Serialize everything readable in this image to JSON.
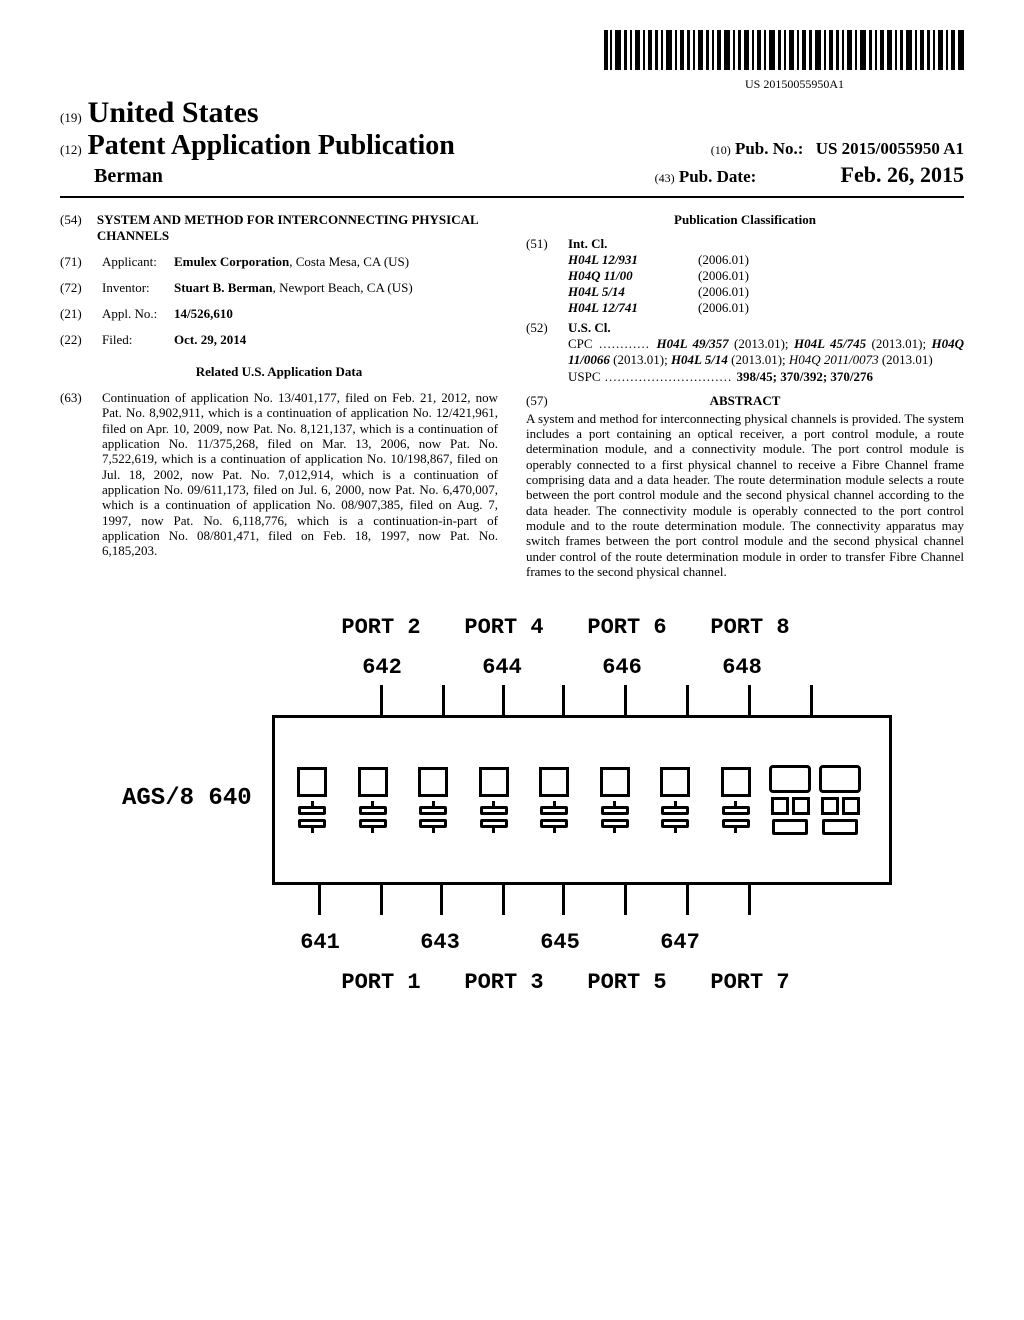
{
  "barcode_number": "US 20150055950A1",
  "header": {
    "n19_label": "(19)",
    "country": "United States",
    "n12_label": "(12)",
    "pub_type": "Patent Application Publication",
    "author": "Berman",
    "n10_label": "(10)",
    "pubno_label": "Pub. No.:",
    "pubno_value": "US 2015/0055950 A1",
    "n43_label": "(43)",
    "pubdate_label": "Pub. Date:",
    "pubdate_value": "Feb. 26, 2015"
  },
  "left": {
    "n54": "(54)",
    "title": "SYSTEM AND METHOD FOR INTERCONNECTING PHYSICAL CHANNELS",
    "n71": "(71)",
    "applicant_label": "Applicant:",
    "applicant_value_bold": "Emulex Corporation",
    "applicant_value_rest": ", Costa Mesa, CA (US)",
    "n72": "(72)",
    "inventor_label": "Inventor:",
    "inventor_value_bold": "Stuart B. Berman",
    "inventor_value_rest": ", Newport Beach, CA (US)",
    "n21": "(21)",
    "appl_label": "Appl. No.:",
    "appl_value": "14/526,610",
    "n22": "(22)",
    "filed_label": "Filed:",
    "filed_value": "Oct. 29, 2014",
    "related_head": "Related U.S. Application Data",
    "n63": "(63)",
    "related_body": "Continuation of application No. 13/401,177, filed on Feb. 21, 2012, now Pat. No. 8,902,911, which is a continuation of application No. 12/421,961, filed on Apr. 10, 2009, now Pat. No. 8,121,137, which is a continuation of application No. 11/375,268, filed on Mar. 13, 2006, now Pat. No. 7,522,619, which is a continuation of application No. 10/198,867, filed on Jul. 18, 2002, now Pat. No. 7,012,914, which is a continuation of application No. 09/611,173, filed on Jul. 6, 2000, now Pat. No. 6,470,007, which is a continuation of application No. 08/907,385, filed on Aug. 7, 1997, now Pat. No. 6,118,776, which is a continuation-in-part of application No. 08/801,471, filed on Feb. 18, 1997, now Pat. No. 6,185,203."
  },
  "right": {
    "pubclass_head": "Publication Classification",
    "n51": "(51)",
    "intcl_label": "Int. Cl.",
    "intcl": [
      {
        "code": "H04L 12/931",
        "yr": "(2006.01)"
      },
      {
        "code": "H04Q 11/00",
        "yr": "(2006.01)"
      },
      {
        "code": "H04L 5/14",
        "yr": "(2006.01)"
      },
      {
        "code": "H04L 12/741",
        "yr": "(2006.01)"
      }
    ],
    "n52": "(52)",
    "uscl_label": "U.S. Cl.",
    "cpc_label": "CPC",
    "cpc_dots": " ............ ",
    "cpc_value_parts": [
      {
        "t": "H04L 49/357",
        "i": true
      },
      {
        "t": " (2013.01); "
      },
      {
        "t": "H04L 45/745",
        "i": true
      },
      {
        "t": " (2013.01); "
      },
      {
        "t": "H04Q 11/0066",
        "i": true
      },
      {
        "t": " (2013.01); "
      },
      {
        "t": "H04L 5/14",
        "i": true
      },
      {
        "t": " (2013.01); "
      },
      {
        "t": "H04Q 2011/0073",
        "i": false,
        "ital_only": true
      },
      {
        "t": " (2013.01)"
      }
    ],
    "uspc_label": "USPC",
    "uspc_dots": " .............................. ",
    "uspc_value": "398/45; 370/392; 370/276",
    "n57": "(57)",
    "abstract_label": "ABSTRACT",
    "abstract_body": "A system and method for interconnecting physical channels is provided. The system includes a port containing an optical receiver, a port control module, a route determination module, and a connectivity module. The port control module is operably connected to a first physical channel to receive a Fibre Channel frame comprising data and a data header. The route determination module selects a route between the port control module and the second physical channel according to the data header. The connectivity module is operably connected to the port control module and to the route determination module. The connectivity apparatus may switch frames between the port control module and the second physical channel under control of the route determination module in order to transfer Fibre Channel frames to the second physical channel."
  },
  "figure": {
    "top_ports": [
      "PORT 2",
      "PORT 4",
      "PORT 6",
      "PORT 8"
    ],
    "top_nums": [
      "642",
      "644",
      "646",
      "648"
    ],
    "ags_label": "AGS/8 640",
    "bot_nums": [
      "641",
      "643",
      "645",
      "647"
    ],
    "bot_ports": [
      "PORT 1",
      "PORT 3",
      "PORT 5",
      "PORT 7"
    ]
  }
}
